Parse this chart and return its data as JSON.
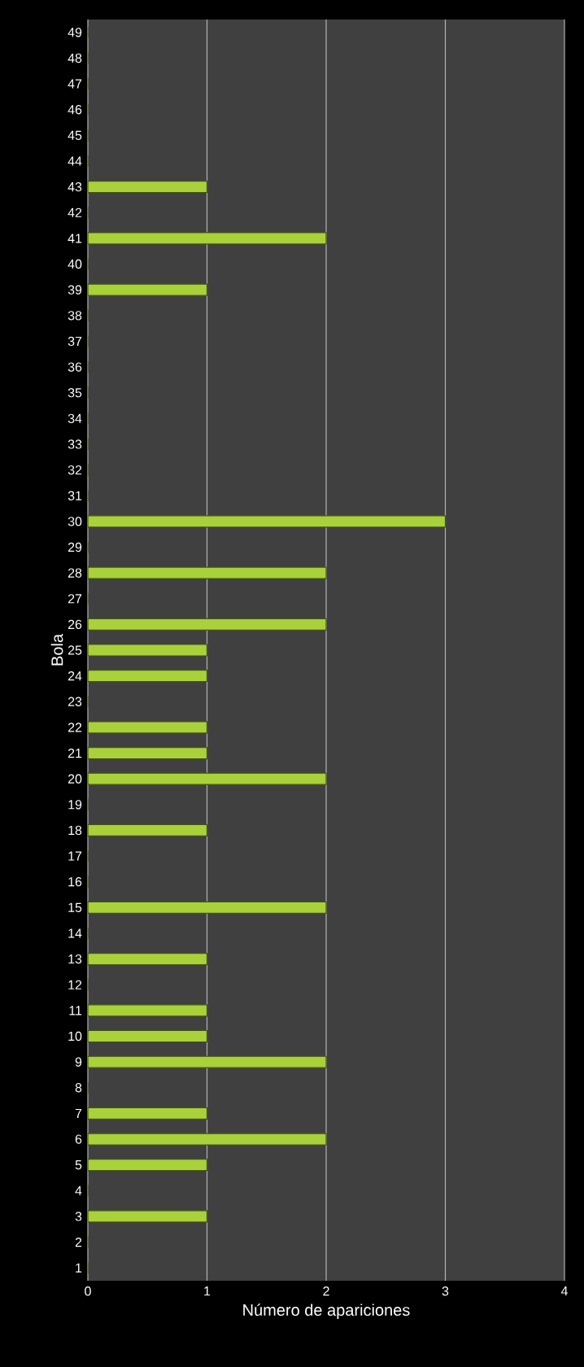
{
  "chart_data": {
    "type": "bar",
    "orientation": "horizontal",
    "xlabel": "Número  de apariciones",
    "ylabel": "Bola",
    "categories": [
      "49",
      "48",
      "47",
      "46",
      "45",
      "44",
      "43",
      "42",
      "41",
      "40",
      "39",
      "38",
      "37",
      "36",
      "35",
      "34",
      "33",
      "32",
      "31",
      "30",
      "29",
      "28",
      "27",
      "26",
      "25",
      "24",
      "23",
      "22",
      "21",
      "20",
      "19",
      "18",
      "17",
      "16",
      "15",
      "14",
      "13",
      "12",
      "11",
      "10",
      "9",
      "8",
      "7",
      "6",
      "5",
      "4",
      "3",
      "2",
      "1"
    ],
    "values": [
      0,
      0,
      0,
      0,
      0,
      0,
      1,
      0,
      2,
      0,
      1,
      0,
      0,
      0,
      0,
      0,
      0,
      0,
      0,
      3,
      0,
      2,
      0,
      2,
      1,
      1,
      0,
      1,
      1,
      2,
      0,
      1,
      0,
      0,
      2,
      0,
      1,
      0,
      1,
      1,
      2,
      0,
      1,
      2,
      1,
      0,
      1,
      0,
      0
    ],
    "color": "#a8d13a",
    "xlim": [
      0,
      4
    ],
    "xticks": [
      0,
      1,
      2,
      3,
      4
    ],
    "grid": "x"
  }
}
